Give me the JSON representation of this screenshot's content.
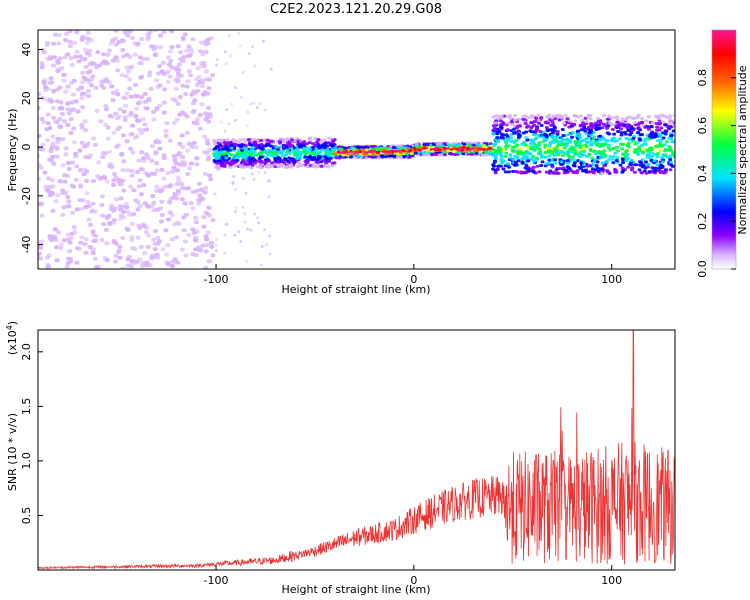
{
  "chart_data": [
    {
      "type": "heatmap",
      "title": "C2E2.2023.121.20.29.G08",
      "xlabel": "Height of straight line (km)",
      "ylabel": "Frequency (Hz)",
      "xlim": [
        -190,
        132
      ],
      "ylim": [
        -50,
        48
      ],
      "x_ticks": [
        -100,
        0,
        100
      ],
      "y_ticks": [
        -40,
        -20,
        0,
        20,
        40
      ],
      "colorbar": {
        "label": "Normalized spectral amplitude",
        "range": [
          0.0,
          1.0
        ],
        "ticks": [
          "0.0",
          "0.2",
          "0.4",
          "0.6",
          "0.8"
        ],
        "colormap": [
          "#ffffff",
          "#d9b3ff",
          "#8a00ff",
          "#0000ff",
          "#00e5ff",
          "#00ff40",
          "#ffff00",
          "#ff6600",
          "#ff0000",
          "#ff1493"
        ]
      },
      "segments": [
        {
          "x_range": [
            -190,
            -101
          ],
          "description_level": 0.15,
          "spread_hz": [
            -50,
            48
          ]
        },
        {
          "x_range": [
            -101,
            -40
          ],
          "description_level": 0.3,
          "spread_hz": [
            -8,
            8
          ]
        },
        {
          "x_range": [
            -40,
            40
          ],
          "description_level": 0.85,
          "spread_hz": [
            -3,
            3
          ]
        },
        {
          "x_range": [
            40,
            132
          ],
          "description_level": 0.3,
          "spread_hz": [
            -12,
            18
          ]
        }
      ]
    },
    {
      "type": "line",
      "xlabel": "Height of straight line (km)",
      "ylabel": "SNR (10 * v/v)",
      "y_multiplier_label": "(x10",
      "y_multiplier_exp": "4",
      "y_multiplier_close": ")",
      "xlim": [
        -190,
        132
      ],
      "ylim": [
        0,
        2.2
      ],
      "x_ticks": [
        -100,
        0,
        100
      ],
      "y_ticks": [
        "0.5",
        "1.0",
        "1.5",
        "2.0"
      ],
      "y_tick_values": [
        0.5,
        1.0,
        1.5,
        2.0
      ],
      "series_color": "#ee3333",
      "trend": [
        {
          "x": -190,
          "y": 0.02
        },
        {
          "x": -110,
          "y": 0.04
        },
        {
          "x": -95,
          "y": 0.06
        },
        {
          "x": -70,
          "y": 0.09
        },
        {
          "x": -50,
          "y": 0.18
        },
        {
          "x": -30,
          "y": 0.3
        },
        {
          "x": -10,
          "y": 0.38
        },
        {
          "x": 0,
          "y": 0.47
        },
        {
          "x": 10,
          "y": 0.55
        },
        {
          "x": 20,
          "y": 0.62
        },
        {
          "x": 30,
          "y": 0.67
        },
        {
          "x": 45,
          "y": 0.7
        },
        {
          "x": 46,
          "y": 0.55
        },
        {
          "x": 80,
          "y": 0.55
        },
        {
          "x": 110,
          "y": 0.6
        },
        {
          "x": 132,
          "y": 0.55
        }
      ],
      "peak": {
        "x": 111,
        "y": 2.2
      }
    }
  ]
}
